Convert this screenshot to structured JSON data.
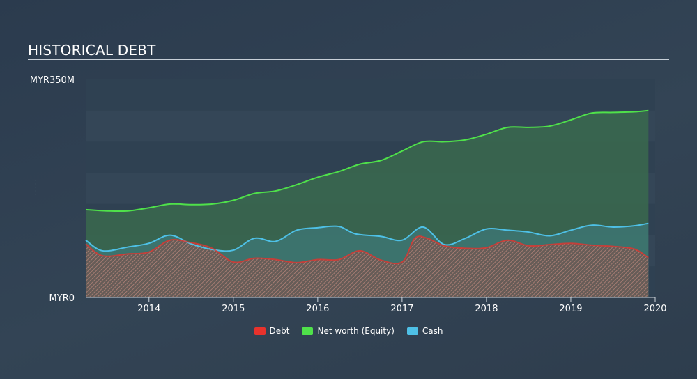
{
  "header": {
    "title": "HISTORICAL DEBT"
  },
  "colors": {
    "debt": "#e8322c",
    "equity": "#4fe14a",
    "cash": "#4ec0e6"
  },
  "chart_data": {
    "type": "area",
    "title": "HISTORICAL DEBT",
    "xlabel": "",
    "ylabel": "",
    "ylim": [
      0,
      350
    ],
    "y_unit": "MYR, millions",
    "y_tick_labels": [
      "MYR0",
      "MYR350M"
    ],
    "x_ticks": [
      2014,
      2015,
      2016,
      2017,
      2018,
      2019,
      2020
    ],
    "x_range": [
      2013.25,
      2020.0
    ],
    "grid": true,
    "legend_position": "bottom-center",
    "series": [
      {
        "name": "Net worth (Equity)",
        "color": "#4fe14a",
        "x": [
          2013.25,
          2013.5,
          2013.75,
          2014.0,
          2014.25,
          2014.5,
          2014.75,
          2015.0,
          2015.25,
          2015.5,
          2015.75,
          2016.0,
          2016.25,
          2016.5,
          2016.75,
          2017.0,
          2017.25,
          2017.5,
          2017.75,
          2018.0,
          2018.25,
          2018.5,
          2018.75,
          2019.0,
          2019.25,
          2019.5,
          2019.75,
          2019.92
        ],
        "values": [
          141,
          139,
          139,
          144,
          150,
          149,
          150,
          156,
          167,
          171,
          181,
          193,
          202,
          214,
          220,
          235,
          250,
          250,
          253,
          262,
          273,
          273,
          275,
          285,
          296,
          297,
          298,
          300
        ]
      },
      {
        "name": "Cash",
        "color": "#4ec0e6",
        "x": [
          2013.25,
          2013.45,
          2013.75,
          2014.0,
          2014.25,
          2014.5,
          2014.75,
          2015.0,
          2015.25,
          2015.5,
          2015.75,
          2016.0,
          2016.25,
          2016.45,
          2016.75,
          2017.0,
          2017.25,
          2017.5,
          2017.75,
          2018.0,
          2018.25,
          2018.5,
          2018.75,
          2019.0,
          2019.25,
          2019.5,
          2019.75,
          2019.92
        ],
        "values": [
          92,
          75,
          81,
          87,
          100,
          86,
          77,
          76,
          95,
          90,
          108,
          112,
          114,
          102,
          98,
          92,
          113,
          85,
          95,
          110,
          108,
          105,
          99,
          108,
          116,
          113,
          115,
          119
        ]
      },
      {
        "name": "Debt",
        "color": "#e8322c",
        "x": [
          2013.25,
          2013.45,
          2013.75,
          2014.0,
          2014.25,
          2014.5,
          2014.75,
          2015.0,
          2015.25,
          2015.5,
          2015.75,
          2016.0,
          2016.25,
          2016.5,
          2016.75,
          2017.0,
          2017.15,
          2017.3,
          2017.5,
          2017.75,
          2018.0,
          2018.25,
          2018.5,
          2018.75,
          2019.0,
          2019.25,
          2019.5,
          2019.75,
          2019.92
        ],
        "values": [
          86,
          67,
          70,
          73,
          92,
          88,
          79,
          57,
          63,
          61,
          56,
          61,
          61,
          75,
          60,
          57,
          95,
          95,
          83,
          79,
          80,
          92,
          83,
          85,
          87,
          84,
          82,
          78,
          64
        ]
      }
    ]
  },
  "legend": {
    "items": [
      {
        "label": "Debt",
        "color": "#e8322c"
      },
      {
        "label": "Net worth (Equity)",
        "color": "#4fe14a"
      },
      {
        "label": "Cash",
        "color": "#4ec0e6"
      }
    ]
  }
}
